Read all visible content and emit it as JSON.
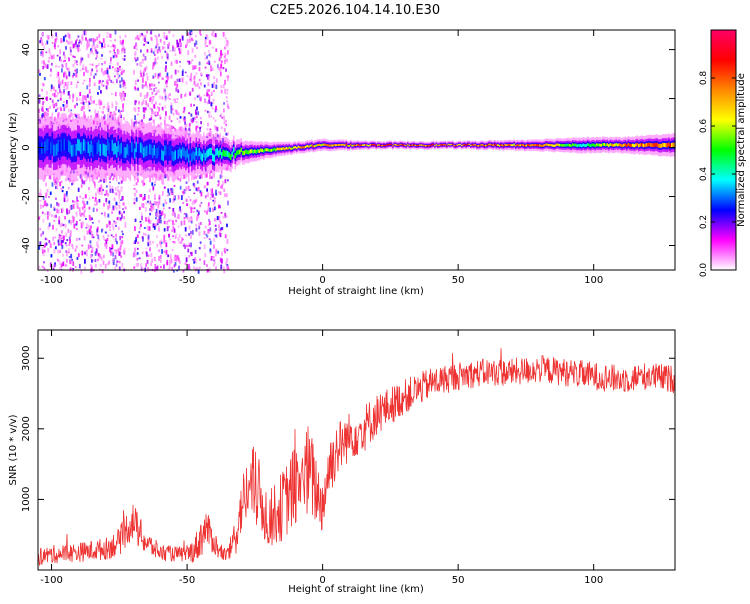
{
  "title": "C2E5.2026.104.14.10.E30",
  "chart_data": [
    {
      "type": "heatmap",
      "xlabel": "Height of straight line (km)",
      "ylabel": "Frequency (Hz)",
      "xlim": [
        -105,
        130
      ],
      "ylim": [
        -50,
        48
      ],
      "xticks": [
        -100,
        -50,
        0,
        50,
        100
      ],
      "yticks": [
        -40,
        -20,
        0,
        20,
        40
      ],
      "colorbar": {
        "label": "Normalized spectral amplitude",
        "range": [
          0,
          1
        ],
        "ticks": [
          "0.0",
          "0.2",
          "0.4",
          "0.6",
          "0.8"
        ],
        "tick_values": [
          0,
          0.2,
          0.4,
          0.6,
          0.8
        ],
        "colors": [
          "#ffffff",
          "#ff00ff",
          "#0000ff",
          "#00ffff",
          "#00ff00",
          "#ffff00",
          "#ff8800",
          "#ff0000",
          "#ff0066"
        ]
      },
      "trace": {
        "x": [
          -105,
          -90,
          -80,
          -70,
          -60,
          -50,
          -40,
          -30,
          -20,
          -10,
          0,
          20,
          50,
          80,
          95,
          110,
          130
        ],
        "center_hz": [
          0,
          0,
          0,
          -1,
          -2,
          -3,
          -3,
          -2,
          -1,
          0,
          1,
          1,
          1,
          1,
          1,
          1,
          1
        ],
        "halfwidth_hz": [
          8,
          8,
          8,
          7,
          7,
          6,
          5,
          3,
          2,
          1.5,
          1.5,
          1,
          1,
          1.5,
          2,
          2,
          3
        ],
        "peak_amplitude": [
          0.3,
          0.35,
          0.35,
          0.35,
          0.35,
          0.35,
          0.45,
          0.6,
          0.7,
          0.8,
          0.8,
          0.9,
          0.9,
          0.85,
          0.5,
          0.85,
          0.9
        ]
      },
      "scatter_regions_km": [
        [
          -105,
          -73
        ],
        [
          -70,
          -45
        ],
        [
          -44,
          -35
        ]
      ],
      "scatter_freq_range_hz": [
        -50,
        48
      ]
    },
    {
      "type": "line",
      "xlabel": "Height of straight line (km)",
      "ylabel": "SNR (10 * v/v)",
      "xlim": [
        -105,
        130
      ],
      "ylim": [
        0,
        3400
      ],
      "xticks": [
        -100,
        -50,
        0,
        50,
        100
      ],
      "yticks": [
        1000,
        2000,
        3000
      ],
      "color": "#ee3333",
      "series": [
        {
          "name": "SNR",
          "x": [
            -105,
            -100,
            -90,
            -80,
            -75,
            -72,
            -70,
            -68,
            -65,
            -60,
            -55,
            -50,
            -47,
            -45,
            -43,
            -40,
            -38,
            -35,
            -32,
            -30,
            -28,
            -25,
            -20,
            -15,
            -10,
            -5,
            -2,
            0,
            2,
            5,
            10,
            15,
            20,
            30,
            40,
            50,
            60,
            70,
            80,
            90,
            100,
            110,
            120,
            130
          ],
          "y": [
            180,
            220,
            250,
            300,
            400,
            600,
            700,
            550,
            380,
            250,
            230,
            220,
            300,
            450,
            600,
            400,
            250,
            200,
            500,
            900,
            1100,
            1200,
            700,
            900,
            1200,
            1400,
            1100,
            900,
            1400,
            1700,
            1900,
            2000,
            2200,
            2450,
            2650,
            2750,
            2800,
            2800,
            2850,
            2800,
            2750,
            2700,
            2750,
            2700
          ],
          "noise": [
            120,
            130,
            140,
            160,
            200,
            250,
            280,
            250,
            180,
            120,
            110,
            110,
            200,
            300,
            250,
            200,
            120,
            100,
            300,
            400,
            500,
            600,
            400,
            500,
            600,
            700,
            500,
            400,
            500,
            400,
            350,
            350,
            300,
            250,
            220,
            200,
            200,
            200,
            200,
            200,
            200,
            200,
            200,
            200
          ]
        }
      ]
    }
  ]
}
